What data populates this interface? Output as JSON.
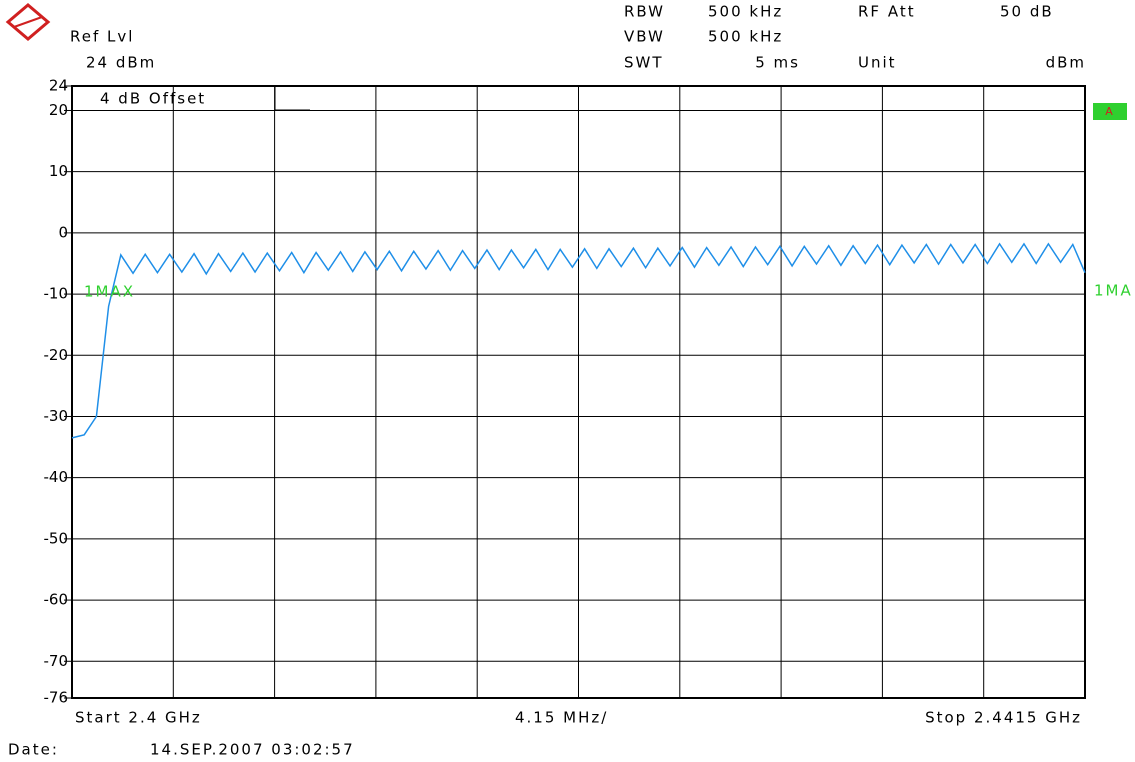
{
  "header": {
    "ref_label": "Ref Lvl",
    "ref_value": "24 dBm",
    "rbw_label": "RBW",
    "rbw_value": "500 kHz",
    "rf_att_label": "RF Att",
    "rf_att_value": "50 dB",
    "vbw_label": "VBW",
    "vbw_value": "500 kHz",
    "swt_label": "SWT",
    "swt_value": "5 ms",
    "unit_label": "Unit",
    "unit_value": "dBm"
  },
  "footer": {
    "start": "Start 2.4 GHz",
    "span": "4.15 MHz/",
    "stop": "Stop 2.4415 GHz",
    "date_label": "Date:",
    "date_value": "14.SEP.2007  03:02:57"
  },
  "chart_data": {
    "type": "line",
    "offset_label": "4 dB Offset",
    "trace_badge": "A",
    "right_marker": "1MA",
    "x": [
      2.4,
      2.4005,
      2.401,
      2.4015,
      2.402,
      2.4025,
      2.403,
      2.4035,
      2.404,
      2.4045,
      2.405,
      2.4055,
      2.406,
      2.4065,
      2.407,
      2.4075,
      2.408,
      2.4085,
      2.409,
      2.4095,
      2.41,
      2.4105,
      2.411,
      2.4115,
      2.412,
      2.4125,
      2.413,
      2.4135,
      2.414,
      2.4145,
      2.415,
      2.4155,
      2.416,
      2.4165,
      2.417,
      2.4175,
      2.418,
      2.4185,
      2.419,
      2.4195,
      2.42,
      2.4205,
      2.421,
      2.4215,
      2.422,
      2.4225,
      2.423,
      2.4235,
      2.424,
      2.4245,
      2.425,
      2.4255,
      2.426,
      2.4265,
      2.427,
      2.4275,
      2.428,
      2.4285,
      2.429,
      2.4295,
      2.43,
      2.4305,
      2.431,
      2.4315,
      2.432,
      2.4325,
      2.433,
      2.4335,
      2.434,
      2.4345,
      2.435,
      2.4355,
      2.436,
      2.4365,
      2.437,
      2.4375,
      2.438,
      2.4385,
      2.439,
      2.4395,
      2.44,
      2.4405,
      2.441,
      2.4415
    ],
    "series": [
      {
        "name": "1MAX",
        "color": "#1f8fe8",
        "values": [
          -33.5,
          -33,
          -30,
          -12,
          -3.6,
          -6.6,
          -3.5,
          -6.5,
          -3.5,
          -6.4,
          -3.4,
          -6.7,
          -3.4,
          -6.3,
          -3.3,
          -6.4,
          -3.3,
          -6.2,
          -3.2,
          -6.5,
          -3.2,
          -6.1,
          -3.1,
          -6.3,
          -3.1,
          -6.0,
          -3.0,
          -6.2,
          -3.0,
          -5.9,
          -2.9,
          -6.1,
          -2.9,
          -5.8,
          -2.8,
          -6.0,
          -2.8,
          -5.7,
          -2.7,
          -6.0,
          -2.7,
          -5.6,
          -2.6,
          -5.8,
          -2.6,
          -5.5,
          -2.5,
          -5.7,
          -2.5,
          -5.4,
          -2.4,
          -5.6,
          -2.4,
          -5.3,
          -2.3,
          -5.5,
          -2.3,
          -5.2,
          -2.2,
          -5.4,
          -2.2,
          -5.1,
          -2.1,
          -5.3,
          -2.1,
          -5.0,
          -2.0,
          -5.2,
          -2.0,
          -4.9,
          -1.9,
          -5.1,
          -1.9,
          -4.9,
          -1.9,
          -5.0,
          -1.8,
          -4.8,
          -1.8,
          -5.0,
          -1.8,
          -4.8,
          -1.9,
          -6.5
        ]
      }
    ],
    "xlim": [
      2.4,
      2.4415
    ],
    "ylim": [
      -76,
      24
    ],
    "yticks": [
      24,
      20,
      10,
      0,
      -10,
      -20,
      -30,
      -40,
      -50,
      -60,
      -70,
      -76
    ],
    "grid": true
  }
}
